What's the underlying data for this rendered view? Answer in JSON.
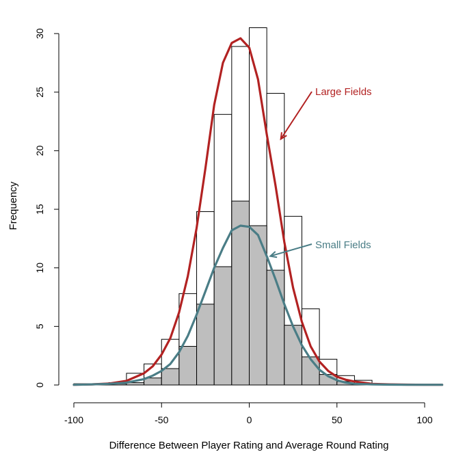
{
  "chart_data": {
    "type": "bar",
    "title": "",
    "xlabel": "Difference Between Player Rating and Average Round Rating",
    "ylabel": "Frequency",
    "xlim": [
      -100,
      110
    ],
    "ylim": [
      0,
      30
    ],
    "x_ticks": [
      -100,
      -50,
      0,
      50,
      100
    ],
    "y_ticks": [
      0,
      5,
      10,
      15,
      20,
      25,
      30
    ],
    "grid": false,
    "bin_edges": [
      -100,
      -90,
      -80,
      -70,
      -60,
      -50,
      -40,
      -30,
      -20,
      -10,
      0,
      10,
      20,
      30,
      40,
      50,
      60,
      70
    ],
    "series": [
      {
        "name": "Large Fields",
        "color": "#b22222",
        "histogram": [
          0.1,
          0.1,
          0.2,
          1.0,
          1.8,
          3.9,
          7.8,
          14.8,
          23.1,
          28.9,
          30.5,
          24.9,
          14.4,
          6.5,
          2.2,
          0.8,
          0.4
        ],
        "curve_x": [
          -100,
          -90,
          -80,
          -70,
          -60,
          -55,
          -50,
          -45,
          -40,
          -35,
          -30,
          -25,
          -20,
          -15,
          -10,
          -5,
          0,
          5,
          10,
          15,
          20,
          25,
          30,
          35,
          40,
          45,
          50,
          55,
          60,
          65,
          70,
          80,
          90,
          100,
          110
        ],
        "curve_y": [
          0.02,
          0.05,
          0.12,
          0.35,
          1.0,
          1.6,
          2.6,
          4.0,
          6.2,
          9.3,
          13.4,
          18.5,
          23.9,
          27.5,
          29.2,
          29.6,
          28.8,
          26.1,
          21.4,
          17.0,
          12.2,
          8.3,
          5.4,
          3.3,
          2.0,
          1.2,
          0.7,
          0.45,
          0.3,
          0.2,
          0.1,
          0.05,
          0.03,
          0.02,
          0.02
        ],
        "label": "Large Fields",
        "arrow_to": [
          18,
          21
        ]
      },
      {
        "name": "Small Fields",
        "color": "#4a7d86",
        "histogram": [
          0.1,
          0.1,
          0.1,
          0.2,
          0.6,
          1.4,
          3.3,
          6.9,
          10.1,
          15.7,
          13.6,
          9.8,
          5.1,
          2.4,
          0.9,
          0.3,
          0.1
        ],
        "curve_x": [
          -100,
          -90,
          -80,
          -70,
          -60,
          -55,
          -50,
          -45,
          -40,
          -35,
          -30,
          -25,
          -20,
          -15,
          -10,
          -5,
          0,
          5,
          10,
          15,
          20,
          25,
          30,
          35,
          40,
          45,
          50,
          55,
          60,
          70,
          80,
          90,
          100,
          110
        ],
        "curve_y": [
          0.02,
          0.05,
          0.1,
          0.2,
          0.5,
          0.8,
          1.2,
          1.8,
          2.8,
          4.2,
          6.0,
          8.0,
          10.0,
          11.7,
          13.2,
          13.6,
          13.5,
          12.8,
          11.0,
          9.0,
          6.9,
          5.0,
          3.4,
          2.2,
          1.3,
          0.75,
          0.4,
          0.2,
          0.1,
          0.05,
          0.03,
          0.02,
          0.02,
          0.02
        ],
        "label": "Small Fields",
        "arrow_to": [
          12,
          11
        ]
      }
    ]
  }
}
